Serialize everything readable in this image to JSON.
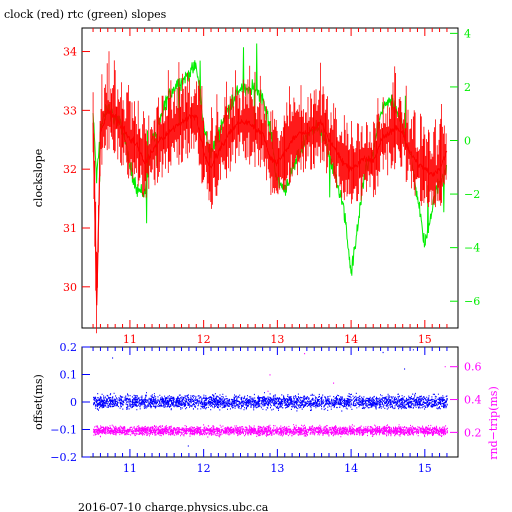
{
  "page": {
    "title": "clock (red) rtc (green) slopes",
    "footer": "2016-07-10 charge.physics.ubc.ca"
  },
  "colors": {
    "clock": "#ff0000",
    "rtc": "#00ee00",
    "offset": "#0000ff",
    "rndtrip": "#ff00ff",
    "frame": "#000000"
  },
  "chart_data": [
    {
      "type": "line",
      "title": "clock (red) rtc (green) slopes",
      "ylabel": "clockslope",
      "y2label": "",
      "xlim": [
        10.35,
        15.45
      ],
      "ylim": [
        29.3,
        34.4
      ],
      "y2lim": [
        -7.0,
        4.2
      ],
      "xticks": [
        11,
        12,
        13,
        14,
        15
      ],
      "yticks": [
        30,
        31,
        32,
        33,
        34
      ],
      "y2ticks": [
        -6,
        -4,
        -2,
        0,
        2,
        4
      ],
      "grid": false,
      "series": [
        {
          "name": "clock",
          "axis": "left",
          "x": [
            10.5,
            10.55,
            10.6,
            10.7,
            10.8,
            10.9,
            11.0,
            11.1,
            11.2,
            11.3,
            11.4,
            11.5,
            11.6,
            11.7,
            11.8,
            11.9,
            12.0,
            12.1,
            12.2,
            12.3,
            12.4,
            12.5,
            12.6,
            12.7,
            12.8,
            12.9,
            13.0,
            13.1,
            13.2,
            13.3,
            13.4,
            13.5,
            13.6,
            13.7,
            13.8,
            13.9,
            14.0,
            14.1,
            14.2,
            14.3,
            14.4,
            14.5,
            14.6,
            14.7,
            14.8,
            14.9,
            15.0,
            15.1,
            15.2,
            15.3
          ],
          "y": [
            32.8,
            29.7,
            32.6,
            33.0,
            32.9,
            32.7,
            32.5,
            32.4,
            32.1,
            32.3,
            32.5,
            32.6,
            32.7,
            32.8,
            32.9,
            32.9,
            32.3,
            32.0,
            32.3,
            32.5,
            32.7,
            32.8,
            32.8,
            32.7,
            32.6,
            32.2,
            32.1,
            32.3,
            32.5,
            32.6,
            32.6,
            32.7,
            32.8,
            32.5,
            32.3,
            32.1,
            32.0,
            32.1,
            32.2,
            32.1,
            32.5,
            32.6,
            32.7,
            32.6,
            32.3,
            32.1,
            32.0,
            31.9,
            32.0,
            32.3
          ]
        },
        {
          "name": "rtc",
          "axis": "right",
          "x": [
            10.5,
            10.55,
            10.6,
            10.7,
            10.8,
            10.9,
            11.0,
            11.1,
            11.2,
            11.3,
            11.4,
            11.5,
            11.6,
            11.7,
            11.8,
            11.9,
            12.0,
            12.1,
            12.2,
            12.3,
            12.4,
            12.5,
            12.6,
            12.7,
            12.8,
            12.9,
            13.0,
            13.1,
            13.2,
            13.3,
            13.4,
            13.5,
            13.6,
            13.7,
            13.8,
            13.9,
            14.0,
            14.1,
            14.2,
            14.3,
            14.4,
            14.5,
            14.6,
            14.7,
            14.8,
            14.9,
            15.0,
            15.1,
            15.2,
            15.3
          ],
          "y": [
            1.0,
            -1.5,
            0.5,
            1.2,
            0.8,
            0.5,
            -1.0,
            -1.8,
            -2.0,
            0.0,
            0.6,
            1.5,
            2.0,
            2.2,
            2.5,
            2.8,
            0.5,
            -0.5,
            0.2,
            1.0,
            1.5,
            2.0,
            1.8,
            2.0,
            1.6,
            0.5,
            -1.5,
            -1.8,
            -1.2,
            -0.5,
            0.2,
            0.5,
            0.3,
            -0.5,
            -1.5,
            -2.5,
            -5.0,
            -3.0,
            -1.0,
            -0.5,
            1.0,
            1.5,
            1.2,
            0.5,
            -0.5,
            -2.0,
            -4.0,
            -2.5,
            -1.5,
            -1.0
          ]
        }
      ]
    },
    {
      "type": "scatter",
      "ylabel": "offset(ms)",
      "y2label": "rnd−trip(ms)",
      "xlim": [
        10.35,
        15.45
      ],
      "ylim": [
        -0.2,
        0.2
      ],
      "y2lim": [
        0.05,
        0.72
      ],
      "xticks": [
        11,
        12,
        13,
        14,
        15
      ],
      "yticks": [
        -0.2,
        -0.1,
        0,
        0.1,
        0.2
      ],
      "ytick_labels": [
        "−0.2",
        "−0.1",
        "0",
        "0.1",
        "0.2"
      ],
      "y2ticks": [
        0.2,
        0.4,
        0.6
      ],
      "grid": false,
      "series": [
        {
          "name": "offset",
          "axis": "left",
          "x_range": [
            10.5,
            15.3
          ],
          "center": 0.0,
          "spread": 0.035,
          "outliers": [
            0.19,
            0.16,
            -0.16,
            0.12,
            0.18
          ]
        },
        {
          "name": "rnd-trip",
          "axis": "right",
          "x_range": [
            10.5,
            15.3
          ],
          "center": 0.21,
          "spread": 0.04,
          "outliers": [
            0.6,
            0.5,
            0.68,
            0.45,
            0.55
          ]
        }
      ]
    }
  ]
}
